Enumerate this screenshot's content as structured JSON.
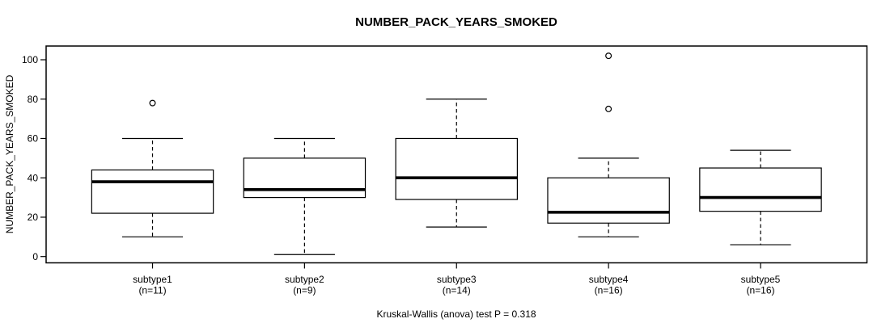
{
  "chart_data": {
    "type": "boxplot",
    "title": "NUMBER_PACK_YEARS_SMOKED",
    "ylabel": "NUMBER_PACK_YEARS_SMOKED",
    "xlabel": "",
    "footer": "Kruskal-Wallis (anova) test P = 0.318",
    "ylim": [
      -3,
      107
    ],
    "yticks": [
      0,
      20,
      40,
      60,
      80,
      100
    ],
    "grid": false,
    "legend": "none",
    "categories": [
      "subtype1",
      "subtype2",
      "subtype3",
      "subtype4",
      "subtype5"
    ],
    "counts": [
      "(n=11)",
      "(n=9)",
      "(n=14)",
      "(n=16)",
      "(n=16)"
    ],
    "series": [
      {
        "name": "subtype1",
        "n": 11,
        "whisker_low": 10,
        "q1": 22,
        "median": 38,
        "q3": 44,
        "whisker_high": 60,
        "outliers": [
          78
        ]
      },
      {
        "name": "subtype2",
        "n": 9,
        "whisker_low": 1,
        "q1": 30,
        "median": 34,
        "q3": 50,
        "whisker_high": 60,
        "outliers": []
      },
      {
        "name": "subtype3",
        "n": 14,
        "whisker_low": 15,
        "q1": 29,
        "median": 40,
        "q3": 60,
        "whisker_high": 80,
        "outliers": []
      },
      {
        "name": "subtype4",
        "n": 16,
        "whisker_low": 10,
        "q1": 17,
        "median": 22.5,
        "q3": 40,
        "whisker_high": 50,
        "outliers": [
          75,
          102
        ]
      },
      {
        "name": "subtype5",
        "n": 16,
        "whisker_low": 6,
        "q1": 23,
        "median": 30,
        "q3": 45,
        "whisker_high": 54,
        "outliers": []
      }
    ],
    "colors": {
      "background": "#ffffff",
      "box_fill": "#ffffff",
      "line": "#000000",
      "median": "#000000",
      "text": "#000000"
    }
  }
}
